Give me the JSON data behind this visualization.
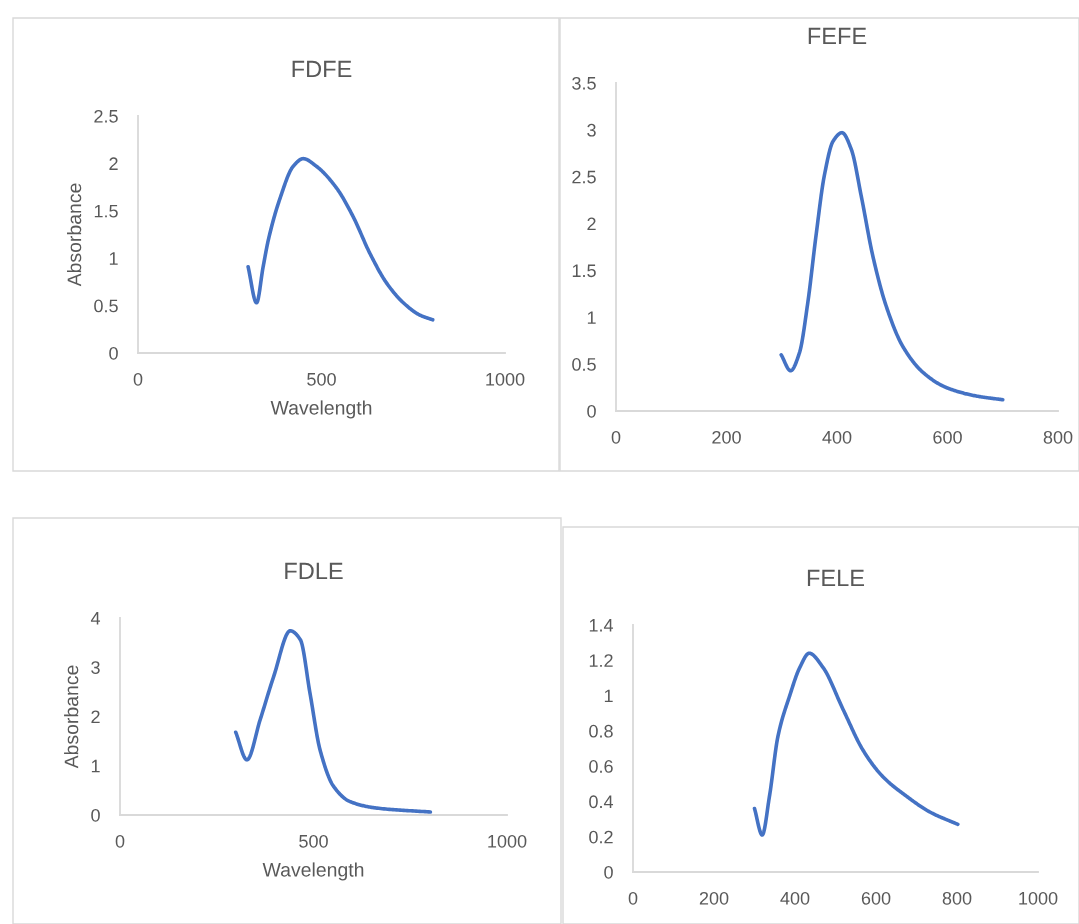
{
  "chart_data": [
    {
      "type": "line",
      "title": "FDFE",
      "xlabel": "Wavelength",
      "ylabel": "Absorbance",
      "xlim": [
        0,
        1000
      ],
      "xticks": [
        0,
        500,
        1000
      ],
      "ylim": [
        0,
        2.5
      ],
      "yticks": [
        0,
        0.5,
        1,
        1.5,
        2,
        2.5
      ],
      "marker": "none",
      "line_style": "solid",
      "x": [
        300,
        323,
        341,
        355,
        386,
        423,
        450,
        486,
        541,
        586,
        632,
        677,
        723,
        768,
        803
      ],
      "series": [
        {
          "color": "#4472c4",
          "values": [
            0.91,
            0.53,
            0.91,
            1.19,
            1.62,
            1.97,
            2.05,
            1.97,
            1.74,
            1.44,
            1.05,
            0.74,
            0.53,
            0.4,
            0.35
          ]
        }
      ]
    },
    {
      "type": "line",
      "title": "FEFE",
      "xlim": [
        0,
        800
      ],
      "xticks": [
        0,
        200,
        400,
        600,
        800
      ],
      "ylim": [
        0,
        3.5
      ],
      "yticks": [
        0,
        0.5,
        1,
        1.5,
        2,
        2.5,
        3,
        3.5
      ],
      "marker": "none",
      "line_style": "solid",
      "x": [
        299,
        316,
        332,
        347,
        362,
        377,
        393,
        409,
        426,
        444,
        465,
        489,
        519,
        556,
        598,
        652,
        700
      ],
      "series": [
        {
          "color": "#4472c4",
          "values": [
            0.6,
            0.43,
            0.62,
            1.15,
            1.87,
            2.51,
            2.88,
            2.97,
            2.79,
            2.29,
            1.65,
            1.12,
            0.69,
            0.41,
            0.25,
            0.16,
            0.12
          ]
        }
      ]
    },
    {
      "type": "line",
      "title": "FDLE",
      "xlabel": "Wavelength",
      "ylabel": "Absorbance",
      "xlim": [
        0,
        1000
      ],
      "xticks": [
        0,
        500,
        1000
      ],
      "ylim": [
        0,
        4
      ],
      "yticks": [
        0,
        1,
        2,
        3,
        4
      ],
      "marker": "none",
      "line_style": "solid",
      "x": [
        299,
        328,
        362,
        397,
        440,
        466,
        491,
        517,
        552,
        595,
        664,
        802
      ],
      "series": [
        {
          "color": "#4472c4",
          "values": [
            1.68,
            1.12,
            1.93,
            2.81,
            3.74,
            3.56,
            2.47,
            1.32,
            0.58,
            0.27,
            0.14,
            0.06
          ]
        }
      ]
    },
    {
      "type": "line",
      "title": "FELE",
      "xlim": [
        0,
        1000
      ],
      "xticks": [
        0,
        200,
        400,
        600,
        800,
        1000
      ],
      "ylim": [
        0,
        1.4
      ],
      "yticks": [
        0,
        0.2,
        0.4,
        0.6,
        0.8,
        1,
        1.2,
        1.4
      ],
      "marker": "none",
      "line_style": "solid",
      "x": [
        300,
        319,
        337,
        358,
        387,
        412,
        435,
        469,
        519,
        568,
        617,
        675,
        733,
        802
      ],
      "series": [
        {
          "color": "#4472c4",
          "values": [
            0.36,
            0.21,
            0.43,
            0.77,
            1.0,
            1.16,
            1.24,
            1.16,
            0.92,
            0.69,
            0.54,
            0.43,
            0.34,
            0.27
          ]
        }
      ]
    }
  ]
}
